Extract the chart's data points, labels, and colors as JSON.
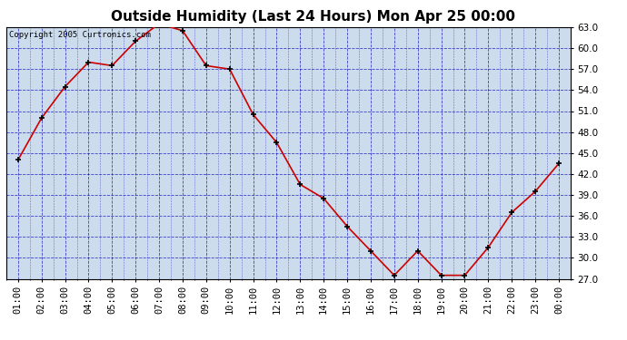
{
  "title": "Outside Humidity (Last 24 Hours) Mon Apr 25 00:00",
  "copyright": "Copyright 2005 Curtronics.com",
  "x_labels": [
    "01:00",
    "02:00",
    "03:00",
    "04:00",
    "05:00",
    "06:00",
    "07:00",
    "08:00",
    "09:00",
    "10:00",
    "11:00",
    "12:00",
    "13:00",
    "14:00",
    "15:00",
    "16:00",
    "17:00",
    "18:00",
    "19:00",
    "20:00",
    "21:00",
    "22:00",
    "23:00",
    "00:00"
  ],
  "y_values": [
    44.0,
    50.0,
    54.5,
    58.0,
    57.5,
    61.0,
    63.5,
    62.5,
    57.5,
    57.0,
    50.5,
    46.5,
    40.5,
    38.5,
    34.5,
    31.0,
    27.5,
    31.0,
    27.5,
    27.5,
    31.5,
    36.5,
    39.5,
    43.5
  ],
  "line_color": "#cc0000",
  "marker_color": "#000000",
  "plot_bg_color": "#ccdcec",
  "grid_color": "#0000bb",
  "grid_style": "--",
  "ylim": [
    27.0,
    63.0
  ],
  "yticks": [
    27.0,
    30.0,
    33.0,
    36.0,
    39.0,
    42.0,
    45.0,
    48.0,
    51.0,
    54.0,
    57.0,
    60.0,
    63.0
  ],
  "title_fontsize": 11,
  "tick_fontsize": 7.5,
  "copyright_fontsize": 6.5,
  "fig_width": 6.9,
  "fig_height": 3.75,
  "dpi": 100
}
